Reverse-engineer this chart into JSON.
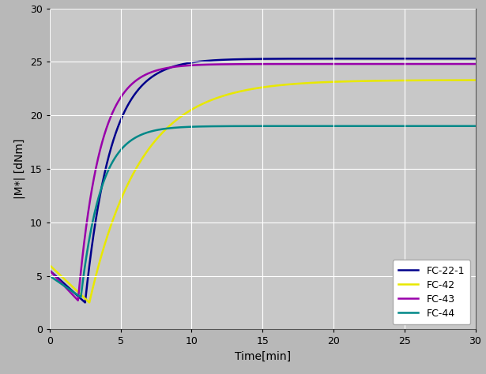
{
  "title": "",
  "xlabel": "Time[min]",
  "ylabel": "|M*| [dNm]",
  "xlim": [
    0,
    30
  ],
  "ylim": [
    0,
    30
  ],
  "xticks": [
    0,
    5,
    10,
    15,
    20,
    25,
    30
  ],
  "yticks": [
    0,
    5,
    10,
    15,
    20,
    25,
    30
  ],
  "background_color": "#b8b8b8",
  "plot_bg_color": "#c8c8c8",
  "grid_color": "#ffffff",
  "series": [
    {
      "label": "FC-22-1",
      "color": "#00008B",
      "linewidth": 1.8,
      "plateau": 25.3,
      "start_val": 5.5,
      "min_val": 2.5,
      "min_t": 2.5,
      "k": 0.55
    },
    {
      "label": "FC-42",
      "color": "#e8e800",
      "linewidth": 1.8,
      "plateau": 23.3,
      "start_val": 6.0,
      "min_val": 2.5,
      "min_t": 2.8,
      "k": 0.28
    },
    {
      "label": "FC-43",
      "color": "#9900aa",
      "linewidth": 1.8,
      "plateau": 24.8,
      "start_val": 5.5,
      "min_val": 2.7,
      "min_t": 2.0,
      "k": 0.65
    },
    {
      "label": "FC-44",
      "color": "#008888",
      "linewidth": 1.8,
      "plateau": 19.0,
      "start_val": 5.0,
      "min_val": 3.0,
      "min_t": 2.2,
      "k": 0.7
    }
  ],
  "legend_facecolor": "#ffffff",
  "legend_edgecolor": "#aaaaaa",
  "fontsize_axis_label": 10,
  "fontsize_tick": 9,
  "fontsize_legend": 9
}
